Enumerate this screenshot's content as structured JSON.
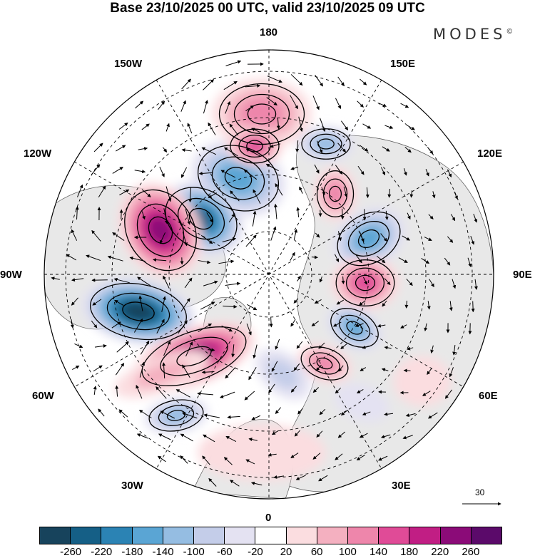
{
  "title": "Base 23/10/2025 00 UTC, valid 23/10/2025 09 UTC",
  "brand": {
    "text": "MODES",
    "mark": "©"
  },
  "longitude_labels": {
    "north": "180",
    "south": "0",
    "east": "90E",
    "west": "90W",
    "ne": "150E",
    "ne2": "120E",
    "nw": "150W",
    "nw2": "120W",
    "se": "30E",
    "se2": "60E",
    "sw": "30W",
    "sw2": "60W"
  },
  "reference_vector": {
    "label": "30"
  },
  "colorbar": {
    "colors": [
      "#17435c",
      "#155f86",
      "#2b83b4",
      "#5aa5d4",
      "#95bde2",
      "#c4cde9",
      "#e4e2f2",
      "#ffffff",
      "#fbdde0",
      "#f4b0c0",
      "#ee86ab",
      "#e04b97",
      "#c11e84",
      "#8b0b78",
      "#5b0a6a"
    ],
    "ticks": [
      "-260",
      "-220",
      "-180",
      "-140",
      "-100",
      "-60",
      "-20",
      "20",
      "60",
      "100",
      "140",
      "180",
      "220",
      "260"
    ]
  },
  "anomaly_cells": [
    {
      "cx": -43,
      "cy": -135,
      "rx": 68,
      "ry": 52,
      "v": -140,
      "rot": 20
    },
    {
      "cx": -95,
      "cy": -78,
      "rx": 62,
      "ry": 48,
      "v": -230,
      "rot": 30
    },
    {
      "cx": -152,
      "cy": -62,
      "rx": 70,
      "ry": 55,
      "v": 225,
      "rot": 60
    },
    {
      "cx": -183,
      "cy": 52,
      "rx": 80,
      "ry": 45,
      "v": -270,
      "rot": 10
    },
    {
      "cx": -105,
      "cy": 115,
      "rx": 90,
      "ry": 40,
      "v": 225,
      "rot": -20
    },
    {
      "cx": -130,
      "cy": 198,
      "rx": 45,
      "ry": 25,
      "v": -110,
      "rot": -10
    },
    {
      "cx": -10,
      "cy": -225,
      "rx": 70,
      "ry": 50,
      "v": 100,
      "rot": 0
    },
    {
      "cx": -20,
      "cy": -180,
      "rx": 40,
      "ry": 28,
      "v": 140,
      "rot": 0
    },
    {
      "cx": 80,
      "cy": -183,
      "rx": 40,
      "ry": 25,
      "v": -110,
      "rot": 0
    },
    {
      "cx": 93,
      "cy": -113,
      "rx": 30,
      "ry": 38,
      "v": 120,
      "rot": 0
    },
    {
      "cx": 140,
      "cy": -50,
      "rx": 55,
      "ry": 40,
      "v": -175,
      "rot": -30
    },
    {
      "cx": 135,
      "cy": 12,
      "rx": 48,
      "ry": 38,
      "v": 170,
      "rot": 0
    },
    {
      "cx": 120,
      "cy": 75,
      "rx": 42,
      "ry": 28,
      "v": -150,
      "rot": 30
    },
    {
      "cx": 78,
      "cy": 125,
      "rx": 40,
      "ry": 25,
      "v": 110,
      "rot": 20
    },
    {
      "cx": 20,
      "cy": 140,
      "rx": 45,
      "ry": 28,
      "v": -90,
      "rot": 40
    },
    {
      "cx": 130,
      "cy": 180,
      "rx": 40,
      "ry": 25,
      "v": -40,
      "rot": 20
    },
    {
      "cx": -10,
      "cy": 250,
      "rx": 90,
      "ry": 40,
      "v": 40,
      "rot": 0
    },
    {
      "cx": 215,
      "cy": 150,
      "rx": 40,
      "ry": 35,
      "v": 50,
      "rot": 0
    },
    {
      "cx": -150,
      "cy": 140,
      "rx": 70,
      "ry": 25,
      "v": 60,
      "rot": -20
    }
  ]
}
